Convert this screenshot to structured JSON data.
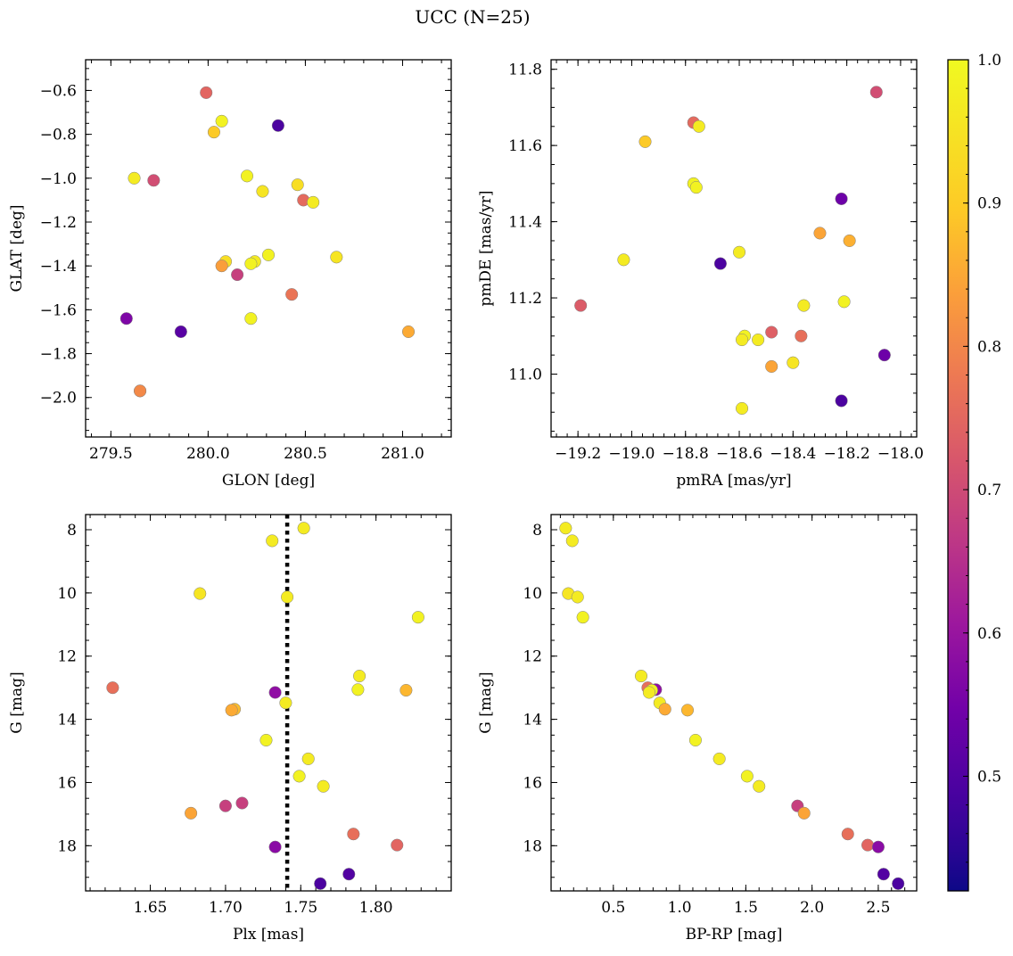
{
  "title": "UCC (N=25)",
  "colorbar": {
    "min": 0.42,
    "max": 1.0,
    "ticks": [
      0.5,
      0.6,
      0.7,
      0.8,
      0.9,
      1.0
    ],
    "colormap": "plasma"
  },
  "chart_data": [
    {
      "type": "scatter",
      "xlabel": "GLON [deg]",
      "ylabel": "GLAT [deg]",
      "xlim": [
        279.37,
        281.25
      ],
      "ylim": [
        -2.18,
        -0.46
      ],
      "y_inverted": false,
      "xticks": [
        279.5,
        280.0,
        280.5,
        281.0
      ],
      "yticks": [
        -0.6,
        -0.8,
        -1.0,
        -1.2,
        -1.4,
        -1.6,
        -1.8,
        -2.0
      ],
      "x": [
        279.99,
        280.07,
        280.03,
        280.36,
        279.62,
        279.72,
        280.2,
        280.46,
        280.28,
        280.49,
        280.54,
        280.31,
        280.66,
        280.09,
        280.24,
        280.07,
        280.22,
        280.15,
        280.43,
        280.22,
        279.58,
        279.86,
        281.03,
        279.65,
        279.65
      ],
      "y": [
        -0.61,
        -0.74,
        -0.79,
        -0.76,
        -1.0,
        -1.01,
        -0.99,
        -1.03,
        -1.06,
        -1.1,
        -1.11,
        -1.35,
        -1.36,
        -1.38,
        -1.38,
        -1.4,
        -1.39,
        -1.44,
        -1.53,
        -1.64,
        -1.64,
        -1.7,
        -1.7,
        -1.97,
        -1.97
      ],
      "c": [
        0.75,
        0.99,
        0.93,
        0.45,
        0.98,
        0.7,
        0.99,
        0.96,
        0.97,
        0.76,
        0.98,
        0.99,
        0.97,
        0.96,
        0.98,
        0.86,
        0.99,
        0.67,
        0.78,
        0.99,
        0.53,
        0.47,
        0.88,
        0.82,
        0.82
      ]
    },
    {
      "type": "scatter",
      "xlabel": "pmRA [mas/yr]",
      "ylabel": "pmDE [mas/yr]",
      "xlim": [
        -19.3,
        -17.94
      ],
      "ylim": [
        10.835,
        11.825
      ],
      "y_inverted": false,
      "xticks": [
        -19.2,
        -19.0,
        -18.8,
        -18.6,
        -18.4,
        -18.2,
        -18.0
      ],
      "xticklabels": [
        "−19.2",
        "−19.0",
        "−18.8",
        "−18.6",
        "−18.4",
        "−18.2",
        "−18.0"
      ],
      "yticks": [
        11.0,
        11.2,
        11.4,
        11.6,
        11.8
      ],
      "x": [
        -18.09,
        -18.77,
        -18.75,
        -18.95,
        -18.77,
        -18.76,
        -18.22,
        -18.3,
        -18.19,
        -18.6,
        -18.67,
        -19.03,
        -18.36,
        -18.21,
        -19.19,
        -18.58,
        -18.59,
        -18.53,
        -18.48,
        -18.37,
        -18.48,
        -18.4,
        -18.06,
        -18.22,
        -18.59
      ],
      "y": [
        11.74,
        11.66,
        11.65,
        11.61,
        11.5,
        11.49,
        11.46,
        11.37,
        11.35,
        11.32,
        11.29,
        11.3,
        11.18,
        11.19,
        11.18,
        11.1,
        11.09,
        11.09,
        11.11,
        11.1,
        11.02,
        11.03,
        11.05,
        10.93,
        10.91
      ],
      "c": [
        0.7,
        0.76,
        0.98,
        0.93,
        0.99,
        0.99,
        0.5,
        0.87,
        0.89,
        0.98,
        0.45,
        0.98,
        0.98,
        0.99,
        0.73,
        0.99,
        0.98,
        0.98,
        0.74,
        0.77,
        0.87,
        0.97,
        0.5,
        0.45,
        0.98
      ]
    },
    {
      "type": "scatter",
      "xlabel": "Plx [mas]",
      "ylabel": "G [mag]",
      "xlim": [
        1.607,
        1.85
      ],
      "ylim": [
        19.43,
        7.52
      ],
      "y_inverted": true,
      "xticks": [
        1.65,
        1.7,
        1.75,
        1.8
      ],
      "xticklabels": [
        "1.65",
        "1.70",
        "1.75",
        "1.80"
      ],
      "yticks": [
        8,
        10,
        12,
        14,
        16,
        18
      ],
      "vline": 1.741,
      "x": [
        1.752,
        1.731,
        1.683,
        1.741,
        1.828,
        1.789,
        1.625,
        1.788,
        1.82,
        1.733,
        1.74,
        1.706,
        1.704,
        1.727,
        1.755,
        1.749,
        1.765,
        1.677,
        1.711,
        1.7,
        1.785,
        1.814,
        1.733,
        1.782,
        1.763
      ],
      "y": [
        7.95,
        8.35,
        10.02,
        10.13,
        10.77,
        12.63,
        13.0,
        13.06,
        13.08,
        13.15,
        13.48,
        13.68,
        13.71,
        14.66,
        15.25,
        15.8,
        16.12,
        16.97,
        16.65,
        16.74,
        17.63,
        17.98,
        18.04,
        18.9,
        19.2
      ],
      "c": [
        0.98,
        0.98,
        0.97,
        0.98,
        0.99,
        0.98,
        0.77,
        0.99,
        0.9,
        0.56,
        0.98,
        0.91,
        0.88,
        0.99,
        0.98,
        0.99,
        0.98,
        0.87,
        0.67,
        0.67,
        0.77,
        0.75,
        0.55,
        0.46,
        0.45
      ]
    },
    {
      "type": "scatter",
      "xlabel": "BP-RP [mag]",
      "ylabel": "G [mag]",
      "xlim": [
        0.03,
        2.79
      ],
      "ylim": [
        19.43,
        7.52
      ],
      "y_inverted": true,
      "xticks": [
        0.5,
        1.0,
        1.5,
        2.0,
        2.5
      ],
      "yticks": [
        8,
        10,
        12,
        14,
        16,
        18
      ],
      "x": [
        0.14,
        0.19,
        0.16,
        0.23,
        0.27,
        0.71,
        0.76,
        0.82,
        0.79,
        0.77,
        0.85,
        0.89,
        1.06,
        1.12,
        1.3,
        1.51,
        1.6,
        1.89,
        1.94,
        2.27,
        2.42,
        2.5,
        2.54,
        2.65
      ],
      "y": [
        7.95,
        8.35,
        10.02,
        10.13,
        10.77,
        12.63,
        13.0,
        13.06,
        13.08,
        13.15,
        13.48,
        13.68,
        13.71,
        14.66,
        15.25,
        15.8,
        16.12,
        16.74,
        16.97,
        17.63,
        17.98,
        18.04,
        18.9,
        19.2
      ],
      "c": [
        0.98,
        0.98,
        0.97,
        0.98,
        0.99,
        0.98,
        0.77,
        0.56,
        0.99,
        0.98,
        0.98,
        0.88,
        0.9,
        0.99,
        0.98,
        0.99,
        0.98,
        0.67,
        0.87,
        0.77,
        0.75,
        0.55,
        0.46,
        0.45
      ]
    }
  ]
}
